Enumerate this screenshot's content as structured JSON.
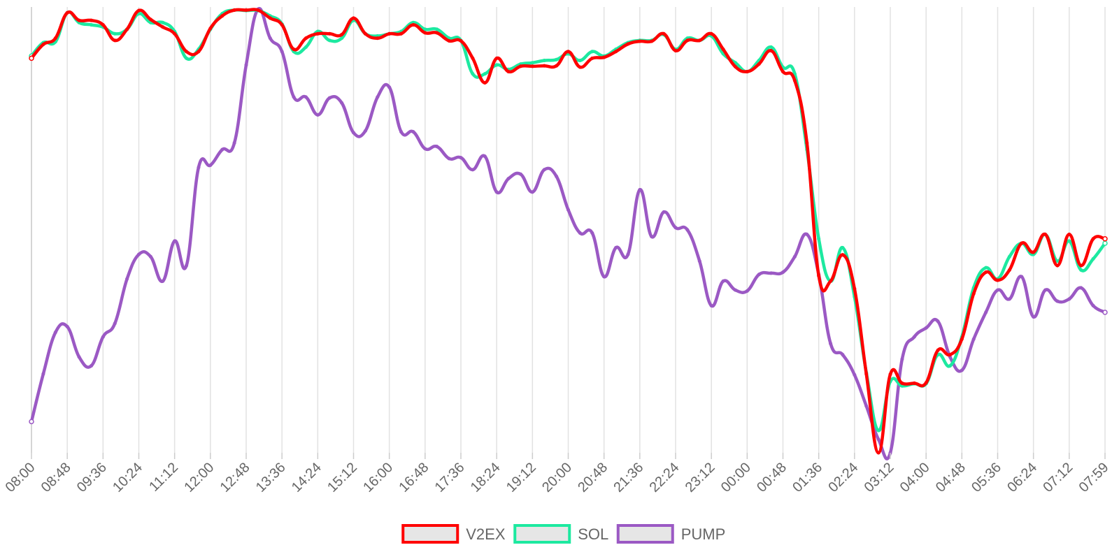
{
  "chart_data": {
    "type": "line",
    "title": "",
    "xlabel": "",
    "ylabel": "",
    "grid": "vertical",
    "legend_position": "bottom",
    "y_axis_labels": "none",
    "categories": [
      "08:00",
      "08:48",
      "09:36",
      "10:24",
      "11:12",
      "12:00",
      "12:48",
      "13:36",
      "14:24",
      "15:12",
      "16:00",
      "16:48",
      "17:36",
      "18:24",
      "19:12",
      "20:00",
      "20:48",
      "21:36",
      "22:24",
      "23:12",
      "00:00",
      "00:48",
      "01:36",
      "02:24",
      "03:12",
      "04:00",
      "04:48",
      "05:36",
      "06:24",
      "07:12",
      "07:59"
    ],
    "ylim": [
      0,
      100
    ],
    "series": [
      {
        "name": "V2EX",
        "color": "#ff0000",
        "values": [
          [
            0,
            88.5
          ],
          [
            0.33,
            91.6
          ],
          [
            0.67,
            93
          ],
          [
            1,
            98.7
          ],
          [
            1.33,
            97
          ],
          [
            1.67,
            97
          ],
          [
            2,
            96
          ],
          [
            2.33,
            92.5
          ],
          [
            2.67,
            95
          ],
          [
            3,
            99.2
          ],
          [
            3.33,
            97.2
          ],
          [
            3.67,
            95.5
          ],
          [
            4,
            94
          ],
          [
            4.33,
            90
          ],
          [
            4.67,
            90
          ],
          [
            5,
            95.2
          ],
          [
            5.33,
            98
          ],
          [
            5.67,
            99.3
          ],
          [
            6,
            99.3
          ],
          [
            6.33,
            99.3
          ],
          [
            6.67,
            97.5
          ],
          [
            7,
            96
          ],
          [
            7.33,
            90.5
          ],
          [
            7.67,
            93
          ],
          [
            8,
            94
          ],
          [
            8.33,
            94
          ],
          [
            8.67,
            93.8
          ],
          [
            9,
            97.5
          ],
          [
            9.33,
            94
          ],
          [
            9.67,
            93
          ],
          [
            10,
            94
          ],
          [
            10.33,
            94
          ],
          [
            10.67,
            96
          ],
          [
            11,
            94.2
          ],
          [
            11.33,
            94.2
          ],
          [
            11.67,
            92.4
          ],
          [
            12,
            92.4
          ],
          [
            12.33,
            88.5
          ],
          [
            12.67,
            83
          ],
          [
            13,
            88.5
          ],
          [
            13.33,
            85.5
          ],
          [
            13.67,
            86.7
          ],
          [
            14,
            86.7
          ],
          [
            14.33,
            86.8
          ],
          [
            14.67,
            86.8
          ],
          [
            15,
            90
          ],
          [
            15.33,
            86.5
          ],
          [
            15.67,
            88.5
          ],
          [
            16,
            88.7
          ],
          [
            16.33,
            90
          ],
          [
            16.67,
            91.7
          ],
          [
            17,
            92.3
          ],
          [
            17.33,
            92.3
          ],
          [
            17.67,
            94
          ],
          [
            18,
            90.2
          ],
          [
            18.33,
            92.5
          ],
          [
            18.67,
            92.5
          ],
          [
            19,
            94
          ],
          [
            19.33,
            90.5
          ],
          [
            19.67,
            86.6
          ],
          [
            20,
            85.5
          ],
          [
            20.33,
            87.2
          ],
          [
            20.67,
            90.2
          ],
          [
            21,
            85.5
          ],
          [
            21.33,
            83.5
          ],
          [
            21.67,
            69.5
          ],
          [
            22,
            39.7
          ],
          [
            22.33,
            38.5
          ],
          [
            22.67,
            44.4
          ],
          [
            23,
            36.8
          ],
          [
            23.33,
            17.7
          ],
          [
            23.67,
            0
          ],
          [
            24,
            17.6
          ],
          [
            24.33,
            15.6
          ],
          [
            24.67,
            15.6
          ],
          [
            25,
            15.7
          ],
          [
            25.33,
            23
          ],
          [
            25.67,
            22
          ],
          [
            26,
            25.5
          ],
          [
            26.33,
            35.7
          ],
          [
            26.67,
            40.5
          ],
          [
            27,
            38.7
          ],
          [
            27.33,
            41
          ],
          [
            27.67,
            47
          ],
          [
            28,
            45
          ],
          [
            28.33,
            49
          ],
          [
            28.67,
            42
          ],
          [
            29,
            49
          ],
          [
            29.33,
            42
          ],
          [
            29.67,
            48
          ],
          [
            30,
            48
          ]
        ]
      },
      {
        "name": "SOL",
        "color": "#1de9a0",
        "values": [
          [
            0,
            89
          ],
          [
            0.33,
            92
          ],
          [
            0.67,
            92.2
          ],
          [
            1,
            98.7
          ],
          [
            1.33,
            96.5
          ],
          [
            1.67,
            96
          ],
          [
            2,
            95.5
          ],
          [
            2.33,
            94
          ],
          [
            2.67,
            95
          ],
          [
            3,
            98.5
          ],
          [
            3.33,
            96.5
          ],
          [
            3.67,
            96.5
          ],
          [
            4,
            94.5
          ],
          [
            4.33,
            88.5
          ],
          [
            4.67,
            90.5
          ],
          [
            5,
            95
          ],
          [
            5.33,
            98.5
          ],
          [
            5.67,
            99.3
          ],
          [
            6,
            99.2
          ],
          [
            6.33,
            99.2
          ],
          [
            6.67,
            98
          ],
          [
            7,
            96.2
          ],
          [
            7.33,
            90
          ],
          [
            7.67,
            91
          ],
          [
            8,
            94.5
          ],
          [
            8.33,
            92.5
          ],
          [
            8.67,
            93
          ],
          [
            9,
            97
          ],
          [
            9.33,
            94
          ],
          [
            9.67,
            93.5
          ],
          [
            10,
            94
          ],
          [
            10.33,
            94.5
          ],
          [
            10.67,
            96.5
          ],
          [
            11,
            95
          ],
          [
            11.33,
            95
          ],
          [
            11.67,
            93
          ],
          [
            12,
            92.5
          ],
          [
            12.33,
            85
          ],
          [
            12.67,
            85
          ],
          [
            13,
            87
          ],
          [
            13.33,
            86
          ],
          [
            13.67,
            87.2
          ],
          [
            14,
            87.5
          ],
          [
            14.33,
            88
          ],
          [
            14.67,
            88.2
          ],
          [
            15,
            89.5
          ],
          [
            15.33,
            88
          ],
          [
            15.67,
            90
          ],
          [
            16,
            89
          ],
          [
            16.33,
            90.5
          ],
          [
            16.67,
            92
          ],
          [
            17,
            92.5
          ],
          [
            17.33,
            92.5
          ],
          [
            17.67,
            93.8
          ],
          [
            18,
            90.5
          ],
          [
            18.33,
            93
          ],
          [
            18.67,
            92.5
          ],
          [
            19,
            93.5
          ],
          [
            19.33,
            89.5
          ],
          [
            19.67,
            87.5
          ],
          [
            20,
            85.5
          ],
          [
            20.33,
            88
          ],
          [
            20.67,
            91
          ],
          [
            21,
            86.5
          ],
          [
            21.33,
            85
          ],
          [
            21.67,
            68
          ],
          [
            22,
            48
          ],
          [
            22.33,
            38.5
          ],
          [
            22.67,
            46
          ],
          [
            23,
            35
          ],
          [
            23.33,
            18
          ],
          [
            23.67,
            5
          ],
          [
            24,
            16
          ],
          [
            24.33,
            15
          ],
          [
            24.67,
            15.5
          ],
          [
            25,
            15.5
          ],
          [
            25.33,
            22
          ],
          [
            25.67,
            19.5
          ],
          [
            26,
            26
          ],
          [
            26.33,
            37
          ],
          [
            26.67,
            41.5
          ],
          [
            27,
            39
          ],
          [
            27.33,
            44
          ],
          [
            27.67,
            47
          ],
          [
            28,
            44.5
          ],
          [
            28.33,
            49
          ],
          [
            28.67,
            43
          ],
          [
            29,
            47.5
          ],
          [
            29.33,
            41
          ],
          [
            29.67,
            43.5
          ],
          [
            30,
            47
          ]
        ]
      },
      {
        "name": "PUMP",
        "color": "#9b59c4",
        "values": [
          [
            0,
            7
          ],
          [
            0.33,
            17.7
          ],
          [
            0.67,
            27
          ],
          [
            1,
            28.3
          ],
          [
            1.33,
            21.5
          ],
          [
            1.67,
            19.5
          ],
          [
            2,
            26
          ],
          [
            2.33,
            29
          ],
          [
            2.67,
            39
          ],
          [
            3,
            44.5
          ],
          [
            3.33,
            44
          ],
          [
            3.67,
            38.5
          ],
          [
            4,
            47.5
          ],
          [
            4.33,
            42
          ],
          [
            4.67,
            64
          ],
          [
            5,
            64.5
          ],
          [
            5.33,
            68
          ],
          [
            5.67,
            69.5
          ],
          [
            6,
            87
          ],
          [
            6.33,
            99.5
          ],
          [
            6.67,
            93
          ],
          [
            7,
            90
          ],
          [
            7.33,
            79.8
          ],
          [
            7.67,
            79.8
          ],
          [
            8,
            75.8
          ],
          [
            8.33,
            79.6
          ],
          [
            8.67,
            78.5
          ],
          [
            9,
            71.8
          ],
          [
            9.33,
            72.2
          ],
          [
            9.67,
            79.8
          ],
          [
            10,
            82
          ],
          [
            10.33,
            72
          ],
          [
            10.67,
            72
          ],
          [
            11,
            68.2
          ],
          [
            11.33,
            68.7
          ],
          [
            11.67,
            66
          ],
          [
            12,
            66.2
          ],
          [
            12.33,
            63.5
          ],
          [
            12.67,
            66.5
          ],
          [
            13,
            58.5
          ],
          [
            13.33,
            61.5
          ],
          [
            13.67,
            62.5
          ],
          [
            14,
            58.5
          ],
          [
            14.33,
            63.5
          ],
          [
            14.67,
            62
          ],
          [
            15,
            54.5
          ],
          [
            15.33,
            49.3
          ],
          [
            15.67,
            49.3
          ],
          [
            16,
            39.5
          ],
          [
            16.33,
            46
          ],
          [
            16.67,
            44.5
          ],
          [
            17,
            59
          ],
          [
            17.33,
            48.5
          ],
          [
            17.67,
            54
          ],
          [
            18,
            50.5
          ],
          [
            18.33,
            50
          ],
          [
            18.67,
            43
          ],
          [
            19,
            33
          ],
          [
            19.33,
            38.5
          ],
          [
            19.67,
            36.5
          ],
          [
            20,
            36.3
          ],
          [
            20.33,
            40
          ],
          [
            20.67,
            40.3
          ],
          [
            21,
            40.5
          ],
          [
            21.33,
            44
          ],
          [
            21.67,
            49
          ],
          [
            22,
            40
          ],
          [
            22.33,
            24.5
          ],
          [
            22.67,
            22
          ],
          [
            23,
            17.5
          ],
          [
            23.33,
            10.5
          ],
          [
            23.67,
            3
          ],
          [
            24,
            0
          ],
          [
            24.33,
            21
          ],
          [
            24.67,
            26
          ],
          [
            25,
            28
          ],
          [
            25.33,
            29.5
          ],
          [
            25.67,
            21.5
          ],
          [
            26,
            18.5
          ],
          [
            26.33,
            25.5
          ],
          [
            26.67,
            31.5
          ],
          [
            27,
            36.5
          ],
          [
            27.33,
            34.5
          ],
          [
            27.67,
            39.5
          ],
          [
            28,
            30.5
          ],
          [
            28.33,
            36.5
          ],
          [
            28.67,
            34
          ],
          [
            29,
            34.5
          ],
          [
            29.33,
            37
          ],
          [
            29.67,
            33
          ],
          [
            30,
            31.5
          ]
        ]
      }
    ]
  }
}
